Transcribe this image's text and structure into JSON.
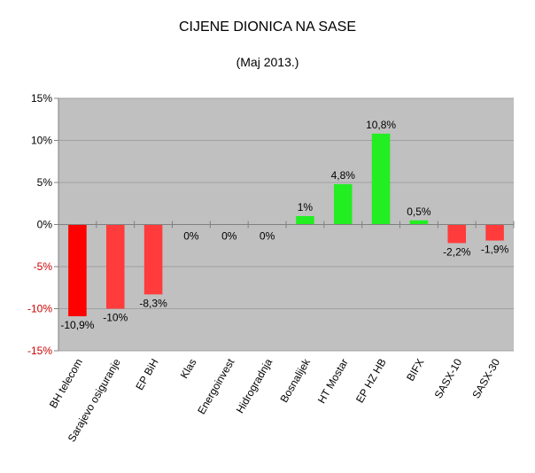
{
  "chart_data": {
    "type": "bar",
    "title": "CIJENE DIONICA NA SASE",
    "subtitle": "(Maj 2013.)",
    "xlabel": "",
    "ylabel": "",
    "ylim": [
      -15,
      15
    ],
    "yticks": [
      15,
      10,
      5,
      0,
      -5,
      -10,
      -15
    ],
    "ytick_labels": [
      "15%",
      "10%",
      "5%",
      "0%",
      "-5%",
      "-10%",
      "-15%"
    ],
    "negative_tick_color": "#cc0000",
    "grid": true,
    "legend": "none",
    "categories": [
      "BH telecom",
      "Sarajevo osiguranje",
      "EP BiH",
      "Klas",
      "Energoinvest",
      "Hidrogradnja",
      "Bosnalijek",
      "HT Mostar",
      "EP HZ HB",
      "BIFX",
      "SASX-10",
      "SASX-30"
    ],
    "values": [
      -10.9,
      -10,
      -8.3,
      0,
      0,
      0,
      1,
      4.8,
      10.8,
      0.5,
      -2.2,
      -1.9
    ],
    "data_labels": [
      "-10,9%",
      "-10%",
      "-8,3%",
      "0%",
      "0%",
      "0%",
      "1%",
      "4,8%",
      "10,8%",
      "0,5%",
      "-2,2%",
      "-1,9%"
    ],
    "bar_colors": [
      "#ff0000",
      "#ff3b3b",
      "#ff3b3b",
      "#22ee22",
      "#22ee22",
      "#22ee22",
      "#22ee22",
      "#22ee22",
      "#22ee22",
      "#22ee22",
      "#ff3b3b",
      "#ff3b3b"
    ],
    "plot_background": "#c0c0c0"
  }
}
